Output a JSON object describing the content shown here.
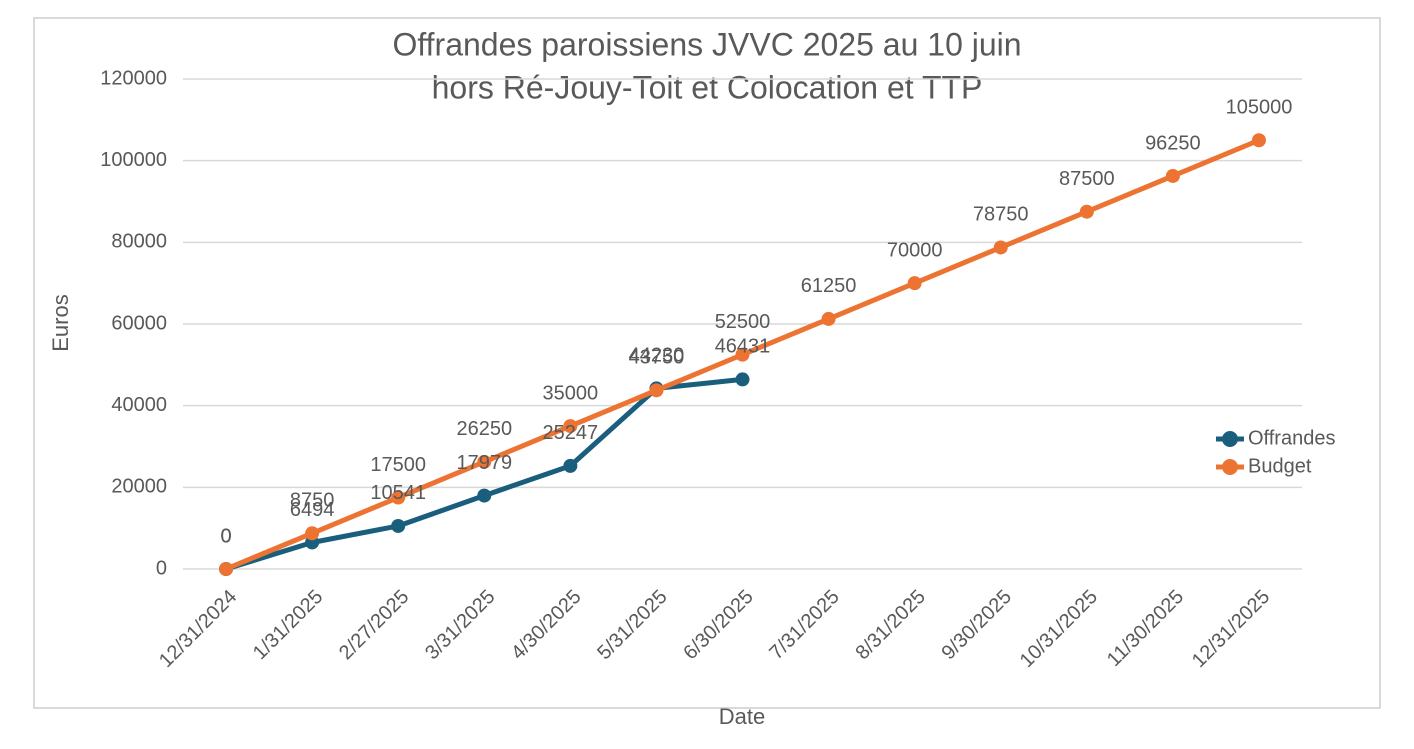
{
  "chart_data": {
    "type": "line",
    "title": [
      "Offrandes paroissiens JVVC 2025 au 10 juin",
      "hors Ré-Jouy-Toit et Colocation et TTP"
    ],
    "x_label": "Date",
    "y_label": "Euros",
    "categories": [
      "12/31/2024",
      "1/31/2025",
      "2/27/2025",
      "3/31/2025",
      "4/30/2025",
      "5/31/2025",
      "6/30/2025",
      "7/31/2025",
      "8/31/2025",
      "9/30/2025",
      "10/31/2025",
      "11/30/2025",
      "12/31/2025"
    ],
    "series": [
      {
        "name": "Offrandes",
        "color": "#1a5e7d",
        "values": [
          0,
          6494,
          10541,
          17979,
          25247,
          44230,
          46431,
          null,
          null,
          null,
          null,
          null,
          null
        ]
      },
      {
        "name": "Budget",
        "color": "#ed7332",
        "values": [
          0,
          8750,
          17500,
          26250,
          35000,
          43750,
          52500,
          61250,
          70000,
          78750,
          87500,
          96250,
          105000
        ]
      }
    ],
    "ylim": [
      0,
      120000
    ],
    "yticks": [
      0,
      20000,
      40000,
      60000,
      80000,
      100000,
      120000
    ],
    "grid": true,
    "legend": "right"
  }
}
